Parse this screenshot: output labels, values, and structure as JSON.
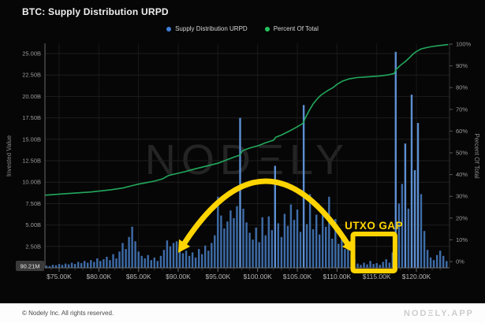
{
  "header": {
    "title": "BTC: Supply Distribution URPD"
  },
  "legend": {
    "items": [
      {
        "label": "Supply Distribution URPD",
        "color": "#3f7fd6"
      },
      {
        "label": "Percent Of Total",
        "color": "#22c55e"
      }
    ]
  },
  "watermark": {
    "text": "NODΞLY"
  },
  "footer": {
    "copyright": "© Nodely Inc. All rights reserved.",
    "brand": "NODΞLY.APP"
  },
  "chart_data": {
    "type": "bar",
    "title": "BTC: Supply Distribution URPD",
    "ylabel_left": "Invested Value",
    "ylabel_right": "Percent Of Total",
    "grid": true,
    "legend_position": "top-center",
    "x_range_kusd": [
      73.2,
      124
    ],
    "x_tick_labels": [
      "$75.00K",
      "$80.00K",
      "$85.00K",
      "$90.00K",
      "$95.00K",
      "$100.00K",
      "$105.00K",
      "$110.00K",
      "$115.00K",
      "$120.00K"
    ],
    "x_tick_values_kusd": [
      75,
      80,
      85,
      90,
      95,
      100,
      105,
      110,
      115,
      120
    ],
    "x_minor_tick_step_kusd": 1,
    "ylim_left_billions": [
      0,
      26.2
    ],
    "y_left_tick_labels": [
      "25.00B",
      "22.50B",
      "20.00B",
      "17.50B",
      "15.00B",
      "12.50B",
      "10.00B",
      "7.50B",
      "5.00B",
      "2.50B"
    ],
    "y_left_tick_values_billions": [
      25,
      22.5,
      20,
      17.5,
      15,
      12.5,
      10,
      7.5,
      5,
      2.5
    ],
    "ylim_right_percent": [
      0,
      100
    ],
    "y_right_tick_labels": [
      "100%",
      "90%",
      "80%",
      "70%",
      "60%",
      "50%",
      "40%",
      "30%",
      "20%",
      "10%",
      "0%"
    ],
    "y_right_tick_values_percent": [
      100,
      90,
      80,
      70,
      60,
      50,
      40,
      30,
      20,
      10,
      0
    ],
    "last_value_badge": "90.21M",
    "series": [
      {
        "name": "Supply Distribution URPD",
        "type": "bar",
        "unit": "USD billions invested per price bin",
        "color": "#3e6ca8",
        "color_bright": "#5d8fd2",
        "x_start_kusd": 73.4,
        "x_step_kusd": 0.4,
        "values": [
          0.25,
          0.2,
          0.35,
          0.3,
          0.45,
          0.35,
          0.5,
          0.4,
          0.6,
          0.45,
          0.7,
          0.55,
          0.8,
          0.6,
          0.9,
          0.7,
          1.1,
          0.8,
          1.0,
          1.3,
          0.9,
          1.6,
          1.1,
          1.9,
          2.9,
          2.2,
          3.6,
          4.8,
          3.1,
          1.9,
          1.4,
          1.1,
          1.5,
          0.9,
          1.2,
          0.8,
          1.4,
          2.1,
          3.2,
          2.5,
          2.9,
          3.1,
          2.3,
          1.7,
          2.0,
          1.4,
          1.8,
          1.2,
          2.2,
          1.6,
          2.6,
          2.0,
          2.9,
          3.8,
          8.3,
          6.1,
          4.6,
          5.4,
          6.7,
          5.8,
          7.2,
          17.5,
          6.9,
          5.3,
          4.1,
          3.3,
          4.7,
          3.0,
          5.9,
          3.8,
          6.0,
          4.4,
          11.9,
          5.2,
          3.6,
          6.3,
          4.9,
          7.4,
          5.6,
          6.8,
          4.2,
          19.0,
          5.1,
          8.6,
          4.5,
          6.2,
          3.9,
          7.0,
          4.8,
          8.3,
          3.4,
          5.7,
          2.8,
          3.5,
          2.2,
          2.9,
          1.6,
          1.0,
          0.5,
          0.35,
          0.6,
          0.4,
          0.8,
          0.45,
          0.55,
          0.35,
          0.7,
          1.0,
          0.6,
          1.8,
          25.2,
          7.5,
          9.8,
          14.5,
          6.9,
          20.2,
          11.4,
          16.9,
          8.6,
          4.3,
          2.1,
          1.2,
          0.9,
          1.5,
          2.0,
          1.4,
          0.8
        ]
      },
      {
        "name": "Percent Of Total",
        "type": "line",
        "unit": "%",
        "color": "#22a85c",
        "points": [
          [
            73.2,
            30.5
          ],
          [
            75,
            31
          ],
          [
            77,
            31.5
          ],
          [
            79,
            32
          ],
          [
            80,
            32.4
          ],
          [
            81.5,
            33
          ],
          [
            83,
            33.8
          ],
          [
            84.3,
            35
          ],
          [
            85,
            35.6
          ],
          [
            86,
            36.3
          ],
          [
            87,
            37
          ],
          [
            88,
            38
          ],
          [
            88.8,
            39.6
          ],
          [
            90,
            40.6
          ],
          [
            91,
            41.5
          ],
          [
            92,
            42.5
          ],
          [
            93,
            43.4
          ],
          [
            94,
            44.3
          ],
          [
            95,
            45.2
          ],
          [
            96,
            46.6
          ],
          [
            97,
            48
          ],
          [
            97.8,
            49
          ],
          [
            98.1,
            51
          ],
          [
            99,
            52.2
          ],
          [
            100,
            53.2
          ],
          [
            101,
            54.6
          ],
          [
            102,
            55.8
          ],
          [
            102.3,
            57.2
          ],
          [
            103,
            58.2
          ],
          [
            104,
            60
          ],
          [
            105,
            62
          ],
          [
            105.7,
            63.5
          ],
          [
            106,
            66
          ],
          [
            106.5,
            69.5
          ],
          [
            107,
            72.5
          ],
          [
            107.5,
            74.8
          ],
          [
            108,
            76.6
          ],
          [
            108.8,
            78.6
          ],
          [
            109.5,
            80
          ],
          [
            110,
            81.5
          ],
          [
            110.7,
            83
          ],
          [
            111.5,
            84
          ],
          [
            112.5,
            84.6
          ],
          [
            114,
            85
          ],
          [
            115.5,
            85.4
          ],
          [
            116.5,
            85.9
          ],
          [
            117.2,
            86.5
          ],
          [
            117.5,
            88.6
          ],
          [
            118,
            90.3
          ],
          [
            118.6,
            92
          ],
          [
            119.2,
            94
          ],
          [
            119.6,
            95.5
          ],
          [
            120,
            96.6
          ],
          [
            120.6,
            97.8
          ],
          [
            121.3,
            98.4
          ],
          [
            122,
            98.9
          ],
          [
            123,
            99.4
          ],
          [
            124,
            99.8
          ]
        ]
      }
    ],
    "annotation": {
      "label": "UTXO GAP",
      "color": "#FFD400",
      "box_price_range_kusd": [
        112,
        117.3
      ],
      "arc_between_kusd": [
        90.7,
        111.4
      ]
    }
  }
}
